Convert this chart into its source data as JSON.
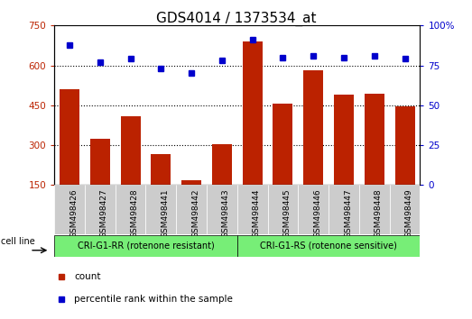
{
  "title": "GDS4014 / 1373534_at",
  "categories": [
    "GSM498426",
    "GSM498427",
    "GSM498428",
    "GSM498441",
    "GSM498442",
    "GSM498443",
    "GSM498444",
    "GSM498445",
    "GSM498446",
    "GSM498447",
    "GSM498448",
    "GSM498449"
  ],
  "bar_values": [
    510,
    325,
    410,
    265,
    168,
    305,
    690,
    455,
    580,
    490,
    495,
    445
  ],
  "percentile_values": [
    88,
    77,
    79,
    73,
    70,
    78,
    91,
    80,
    81,
    80,
    81,
    79
  ],
  "bar_color": "#bb2200",
  "percentile_color": "#0000cc",
  "ylim_left": [
    150,
    750
  ],
  "ylim_right": [
    0,
    100
  ],
  "yticks_left": [
    150,
    300,
    450,
    600,
    750
  ],
  "yticks_right": [
    0,
    25,
    50,
    75,
    100
  ],
  "ytick_right_labels": [
    "0",
    "25",
    "50",
    "75",
    "100%"
  ],
  "group1_label": "CRI-G1-RR (rotenone resistant)",
  "group2_label": "CRI-G1-RS (rotenone sensitive)",
  "cell_line_label": "cell line",
  "legend_count": "count",
  "legend_percentile": "percentile rank within the sample",
  "group_bg_color": "#77ee77",
  "tick_bg_color": "#cccccc",
  "title_fontsize": 11,
  "tick_fontsize": 7.5,
  "grid_dotted_yvals": [
    300,
    450,
    600
  ]
}
